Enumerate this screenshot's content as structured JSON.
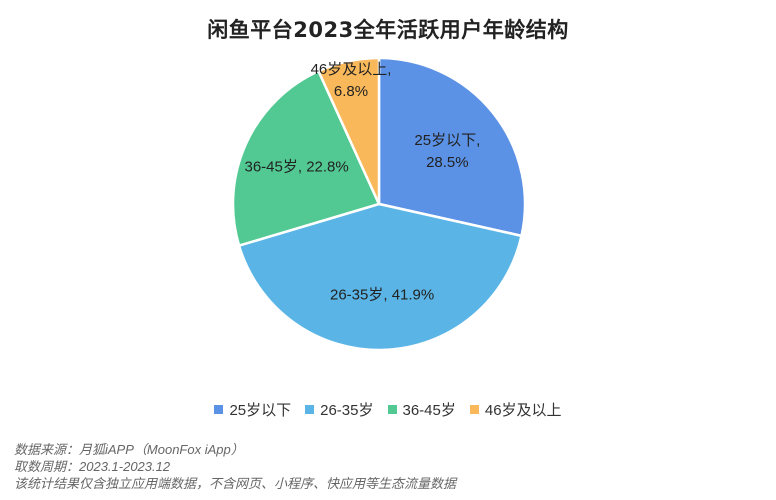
{
  "chart_data": {
    "type": "pie",
    "title": "闲鱼平台2023全年活跃用户年龄结构",
    "slices": [
      {
        "label": "25岁以下",
        "value": 28.5,
        "value_text": "28.5%",
        "color": "#5b92e5"
      },
      {
        "label": "26-35岁",
        "value": 41.9,
        "value_text": "41.9%",
        "color": "#5ab5e6"
      },
      {
        "label": "36-45岁",
        "value": 22.8,
        "value_text": "22.8%",
        "color": "#52c993"
      },
      {
        "label": "46岁及以上",
        "value": 6.8,
        "value_text": "6.8%",
        "color": "#f9b85a"
      }
    ],
    "legend_position": "bottom"
  },
  "footnotes": [
    "数据来源：月狐iAPP（MoonFox iApp）",
    "取数周期：2023.1-2023.12",
    "该统计结果仅含独立应用端数据，不含网页、小程序、快应用等生态流量数据"
  ]
}
